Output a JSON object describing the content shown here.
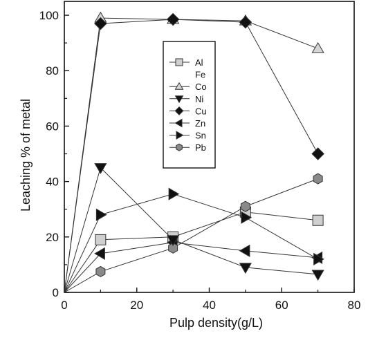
{
  "chart_data": {
    "type": "line",
    "title": "",
    "xlabel": "Pulp density(g/L)",
    "ylabel": "Leaching % of metal",
    "xlim": [
      0,
      80
    ],
    "ylim": [
      0,
      105
    ],
    "xticks": [
      0,
      20,
      40,
      60,
      80
    ],
    "yticks": [
      0,
      20,
      40,
      60,
      80,
      100
    ],
    "grid": false,
    "legend_position": "top-center",
    "series": [
      {
        "name": "Al",
        "marker": "square",
        "x": [
          0,
          10,
          30,
          50,
          70
        ],
        "y": [
          0,
          19,
          20,
          29,
          26
        ]
      },
      {
        "name": "Fe",
        "marker": "none",
        "x": [],
        "y": []
      },
      {
        "name": "Co",
        "marker": "triangle-up",
        "x": [
          0,
          10,
          30,
          50,
          70
        ],
        "y": [
          0,
          99,
          98.5,
          98,
          88
        ]
      },
      {
        "name": "Ni",
        "marker": "triangle-down",
        "x": [
          0,
          10,
          30,
          50,
          70
        ],
        "y": [
          0,
          45,
          19,
          9,
          6.5
        ]
      },
      {
        "name": "Cu",
        "marker": "diamond",
        "x": [
          0,
          10,
          30,
          50,
          70
        ],
        "y": [
          0,
          97,
          98.5,
          97.5,
          50
        ]
      },
      {
        "name": "Zn",
        "marker": "triangle-left",
        "x": [
          0,
          10,
          30,
          50,
          70
        ],
        "y": [
          0,
          14,
          18,
          15,
          12.5
        ]
      },
      {
        "name": "Sn",
        "marker": "triangle-right",
        "x": [
          0,
          10,
          30,
          50,
          70
        ],
        "y": [
          0,
          28,
          35.5,
          27,
          12
        ]
      },
      {
        "name": "Pb",
        "marker": "hexagon",
        "x": [
          0,
          10,
          30,
          50,
          70
        ],
        "y": [
          0,
          7.5,
          16,
          31,
          41
        ]
      }
    ]
  }
}
